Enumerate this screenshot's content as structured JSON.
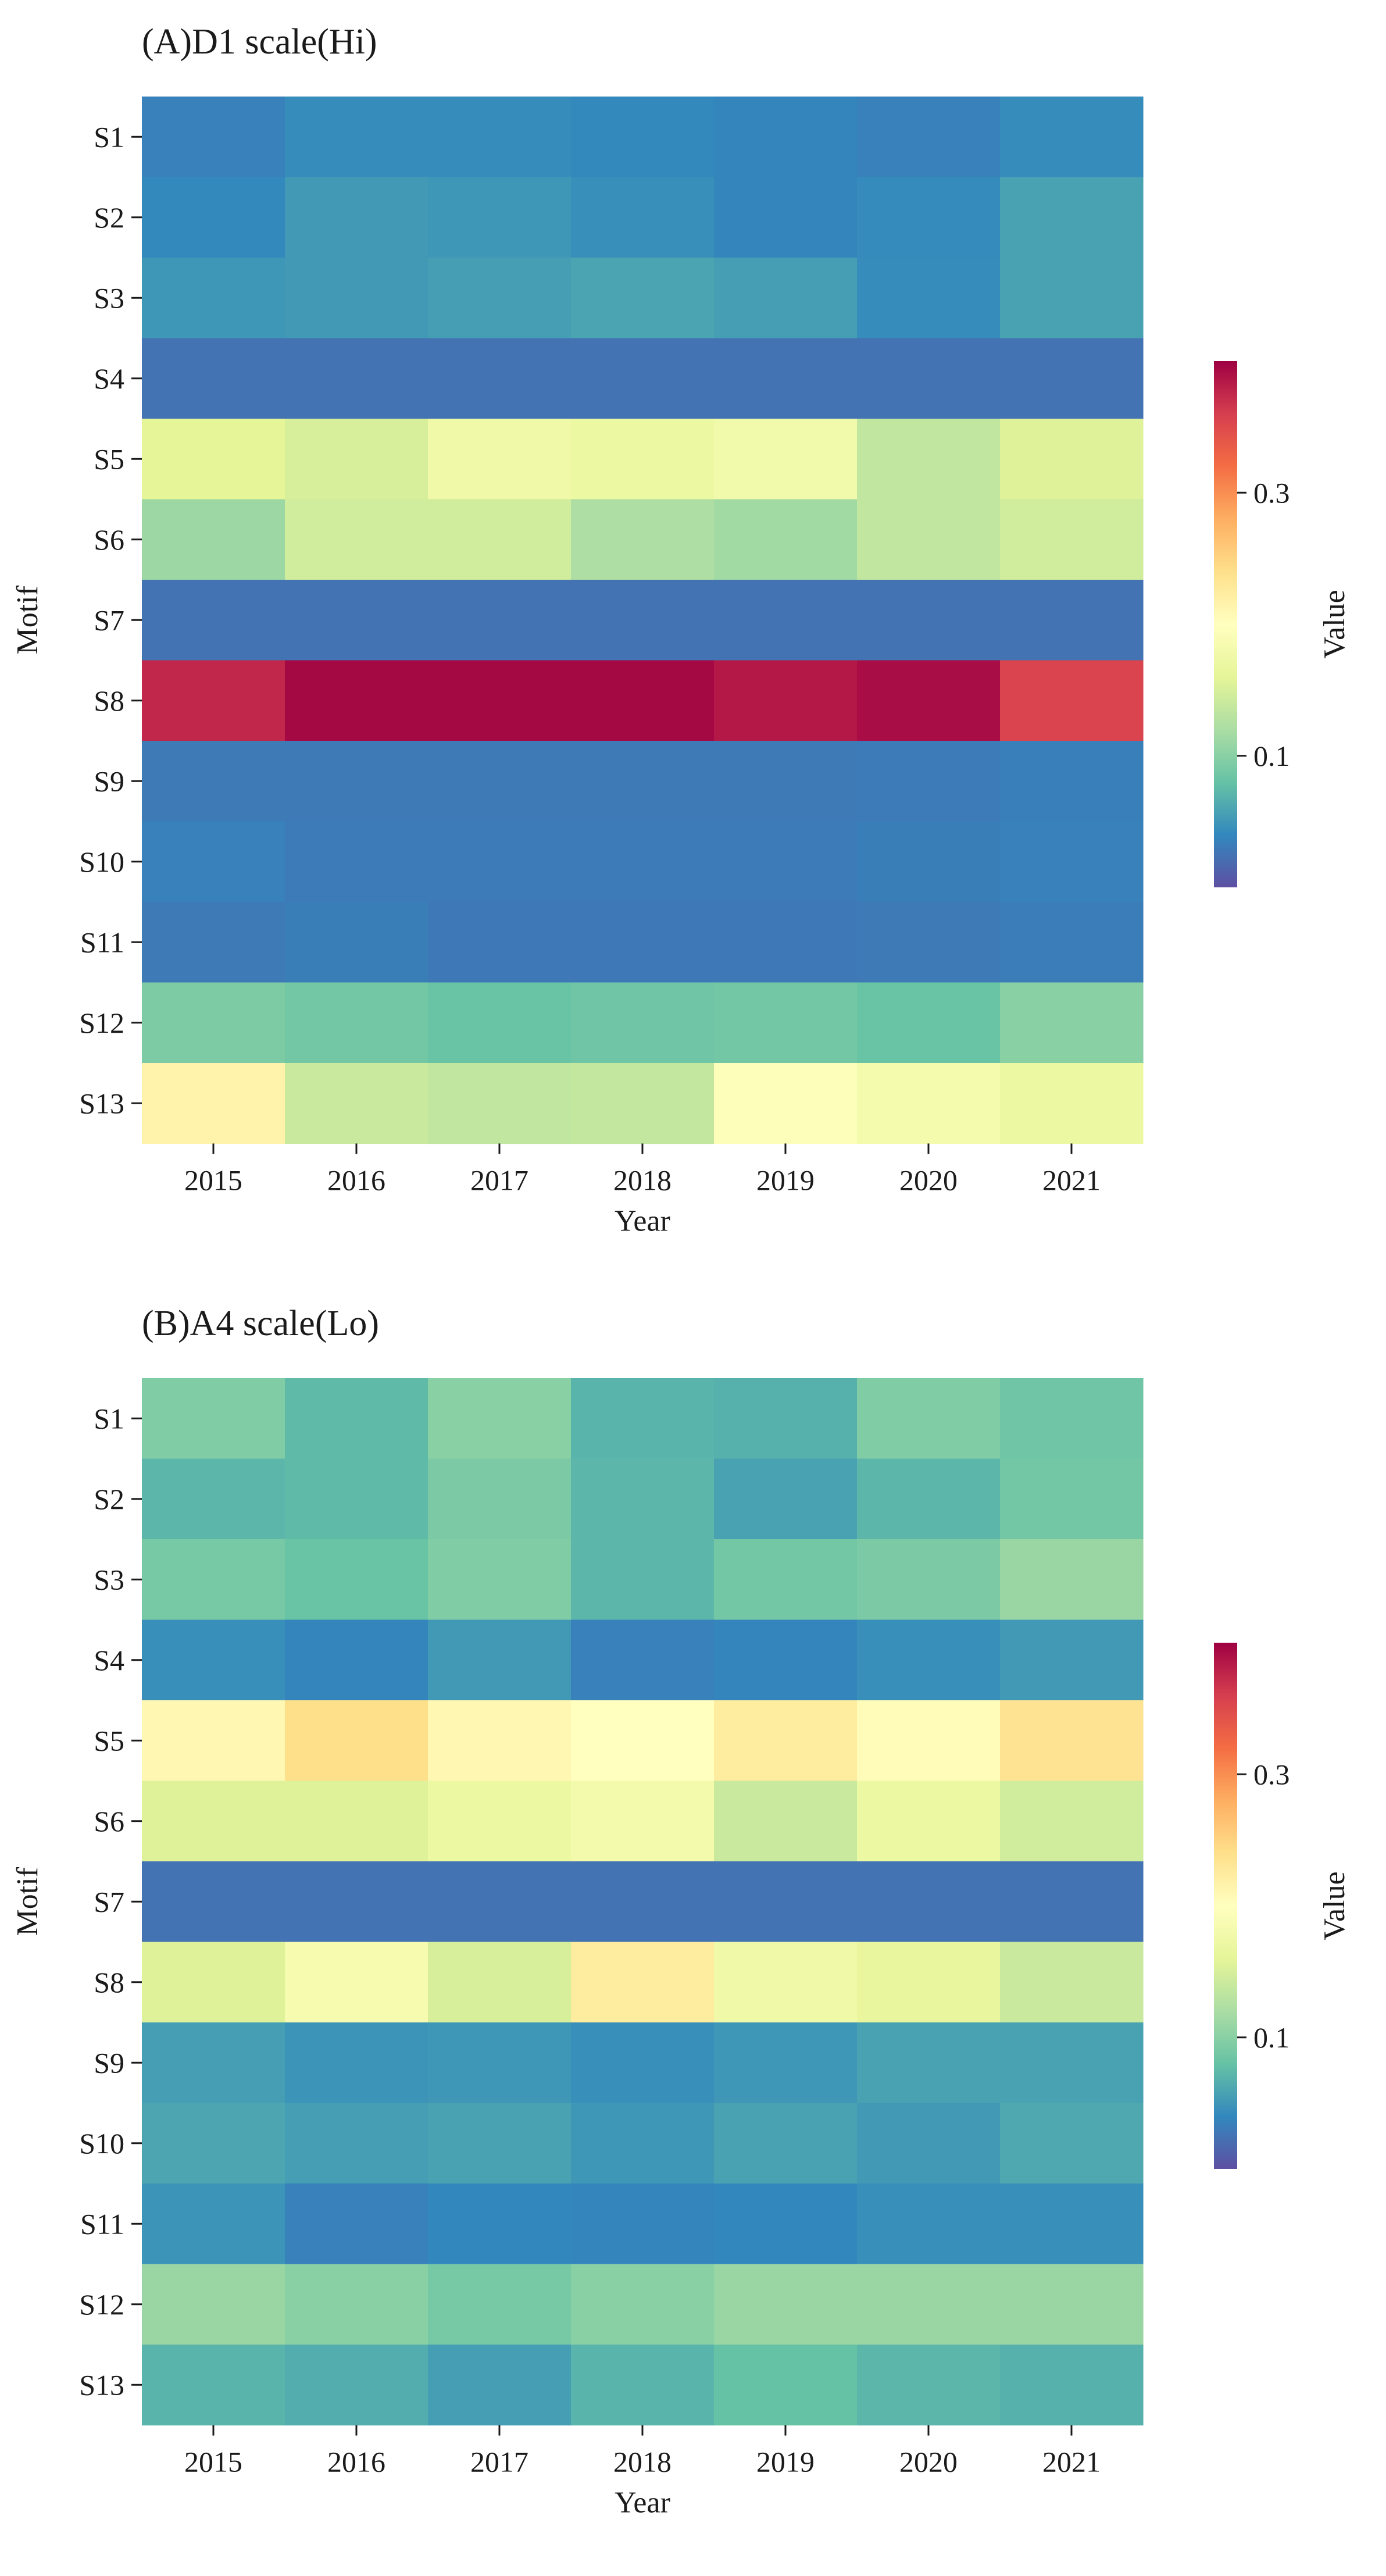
{
  "chart_data": [
    {
      "type": "heatmap",
      "title": "(A)D1 scale(Hi)",
      "xlabel": "Year",
      "ylabel": "Motif",
      "x": [
        "2015",
        "2016",
        "2017",
        "2018",
        "2019",
        "2020",
        "2021"
      ],
      "y": [
        "S1",
        "S2",
        "S3",
        "S4",
        "S5",
        "S6",
        "S7",
        "S8",
        "S9",
        "S10",
        "S11",
        "S12",
        "S13"
      ],
      "values": [
        [
          0.035,
          0.043,
          0.043,
          0.041,
          0.038,
          0.035,
          0.043
        ],
        [
          0.041,
          0.052,
          0.05,
          0.045,
          0.038,
          0.042,
          0.058
        ],
        [
          0.05,
          0.052,
          0.055,
          0.059,
          0.055,
          0.043,
          0.058
        ],
        [
          0.025,
          0.025,
          0.025,
          0.025,
          0.025,
          0.025,
          0.025
        ],
        [
          0.16,
          0.15,
          0.175,
          0.17,
          0.178,
          0.135,
          0.155
        ],
        [
          0.112,
          0.145,
          0.145,
          0.122,
          0.115,
          0.135,
          0.145
        ],
        [
          0.025,
          0.025,
          0.025,
          0.025,
          0.025,
          0.025,
          0.025
        ],
        [
          0.375,
          0.395,
          0.395,
          0.395,
          0.385,
          0.392,
          0.355
        ],
        [
          0.03,
          0.03,
          0.03,
          0.03,
          0.03,
          0.031,
          0.034
        ],
        [
          0.035,
          0.031,
          0.031,
          0.031,
          0.031,
          0.033,
          0.035
        ],
        [
          0.03,
          0.033,
          0.029,
          0.029,
          0.029,
          0.03,
          0.032
        ],
        [
          0.093,
          0.088,
          0.082,
          0.085,
          0.088,
          0.082,
          0.1
        ],
        [
          0.215,
          0.14,
          0.135,
          0.137,
          0.195,
          0.182,
          0.17
        ]
      ],
      "colorbar": {
        "label": "Value",
        "ticks": [
          0.1,
          0.3
        ],
        "range": [
          0.0,
          0.4
        ]
      }
    },
    {
      "type": "heatmap",
      "title": "(B)A4 scale(Lo)",
      "xlabel": "Year",
      "ylabel": "Motif",
      "x": [
        "2015",
        "2016",
        "2017",
        "2018",
        "2019",
        "2020",
        "2021"
      ],
      "y": [
        "S1",
        "S2",
        "S3",
        "S4",
        "S5",
        "S6",
        "S7",
        "S8",
        "S9",
        "S10",
        "S11",
        "S12",
        "S13"
      ],
      "values": [
        [
          0.095,
          0.075,
          0.1,
          0.07,
          0.068,
          0.095,
          0.085
        ],
        [
          0.072,
          0.075,
          0.092,
          0.072,
          0.058,
          0.072,
          0.088
        ],
        [
          0.09,
          0.082,
          0.095,
          0.072,
          0.088,
          0.092,
          0.11
        ],
        [
          0.045,
          0.038,
          0.052,
          0.035,
          0.038,
          0.045,
          0.052
        ],
        [
          0.21,
          0.24,
          0.21,
          0.2,
          0.225,
          0.205,
          0.235
        ],
        [
          0.155,
          0.155,
          0.17,
          0.18,
          0.14,
          0.17,
          0.145
        ],
        [
          0.025,
          0.025,
          0.025,
          0.025,
          0.025,
          0.025,
          0.025
        ],
        [
          0.155,
          0.185,
          0.15,
          0.225,
          0.175,
          0.165,
          0.14
        ],
        [
          0.055,
          0.048,
          0.05,
          0.045,
          0.05,
          0.058,
          0.058
        ],
        [
          0.06,
          0.055,
          0.058,
          0.05,
          0.058,
          0.052,
          0.062
        ],
        [
          0.048,
          0.035,
          0.04,
          0.038,
          0.04,
          0.045,
          0.045
        ],
        [
          0.11,
          0.1,
          0.09,
          0.1,
          0.11,
          0.11,
          0.11
        ],
        [
          0.07,
          0.065,
          0.055,
          0.07,
          0.08,
          0.072,
          0.068
        ]
      ],
      "colorbar": {
        "label": "Value",
        "ticks": [
          0.1,
          0.3
        ],
        "range": [
          0.0,
          0.4
        ]
      }
    }
  ]
}
